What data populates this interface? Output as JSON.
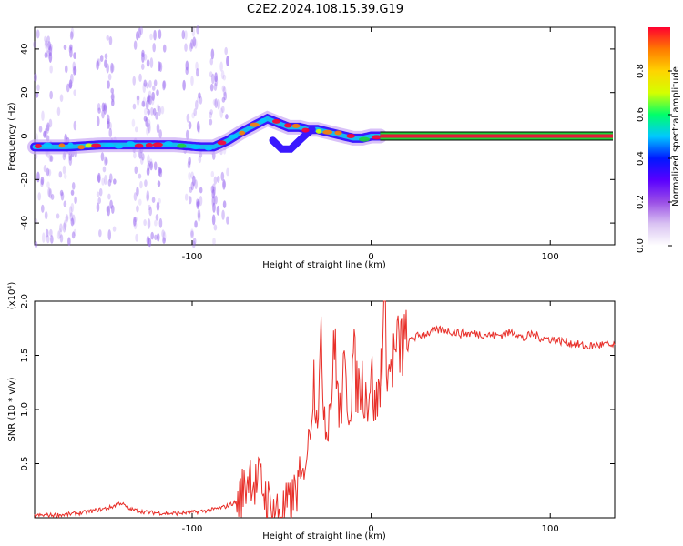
{
  "title": "C2E2.2024.108.15.39.G19",
  "colors": {
    "snr_line": "#e8302a",
    "track_band": "#1fd13a",
    "track_core": "#e31a3a",
    "scatter": "#9b6cf0",
    "axis": "#000000"
  },
  "chart_data": [
    {
      "type": "heatmap",
      "xlabel": "Height of straight line (km)",
      "ylabel": "Frequency (Hz)",
      "xlim": [
        -188,
        136
      ],
      "ylim": [
        -50,
        50
      ],
      "x_ticks": [
        "-100",
        "0",
        "100"
      ],
      "y_ticks": [
        "40",
        "20",
        "0",
        "-20",
        "-40"
      ],
      "x_tick_values": [
        -100,
        0,
        100
      ],
      "y_tick_values": [
        40,
        20,
        0,
        -20,
        -40
      ],
      "colorbar": {
        "label": "Normalized spectral amplitude",
        "range": [
          0,
          1
        ],
        "ticks": [
          "0.0",
          "0.2",
          "0.4",
          "0.6",
          "0.8"
        ],
        "tick_values": [
          0,
          0.2,
          0.4,
          0.6,
          0.8
        ],
        "colormap": [
          "#ffffff",
          "#d9c2f2",
          "#9a4ee6",
          "#5a00ff",
          "#0018ff",
          "#00c8ff",
          "#00ff6a",
          "#d4ff00",
          "#ffd400",
          "#ff7a00",
          "#ff0030"
        ]
      },
      "track": {
        "x": [
          -188,
          -170,
          -150,
          -130,
          -110,
          -95,
          -88,
          -80,
          -72,
          -65,
          -58,
          -52,
          -46,
          -40,
          -35,
          -30,
          -25,
          -20,
          -15,
          -10,
          -5,
          0,
          5,
          10,
          60,
          136
        ],
        "frequency": [
          -5,
          -5,
          -4,
          -4,
          -4,
          -5,
          -5,
          -2,
          2,
          5,
          8,
          6,
          4,
          4,
          3,
          3,
          2,
          1,
          0,
          -1,
          -1,
          0,
          0,
          0,
          0,
          0
        ],
        "stable_from_x": 5
      },
      "branch": {
        "x": [
          -55,
          -50,
          -45,
          -40,
          -36,
          -33
        ],
        "frequency": [
          -2,
          -6,
          -6,
          -2,
          1,
          3
        ]
      }
    },
    {
      "type": "line",
      "xlabel": "Height of straight line (km)",
      "ylabel": "SNR (10 * v/v)",
      "y_multiplier": "(x10⁴)",
      "xlim": [
        -188,
        136
      ],
      "ylim": [
        0,
        2.0
      ],
      "x_ticks": [
        "-100",
        "0",
        "100"
      ],
      "y_ticks": [
        "2.0",
        "1.5",
        "1.0",
        "0.5"
      ],
      "x_tick_values": [
        -100,
        0,
        100
      ],
      "y_tick_values": [
        2.0,
        1.5,
        1.0,
        0.5
      ],
      "series": [
        {
          "x": [
            -188,
            -170,
            -160,
            -150,
            -145,
            -140,
            -135,
            -125,
            -110,
            -100,
            -90,
            -82,
            -75,
            -70,
            -68,
            -65,
            -62,
            -58,
            -55,
            -50,
            -45,
            -42,
            -38,
            -35,
            -32,
            -30,
            -28,
            -25,
            -22,
            -20,
            -18,
            -15,
            -12,
            -10,
            -8,
            -5,
            -2,
            0,
            2,
            5,
            7,
            10,
            12,
            15,
            18,
            20,
            22,
            25,
            30,
            35,
            40,
            45,
            50,
            60,
            70,
            80,
            85,
            90,
            95,
            100,
            110,
            120,
            130,
            136
          ],
          "y": [
            0.02,
            0.03,
            0.05,
            0.08,
            0.1,
            0.14,
            0.08,
            0.05,
            0.04,
            0.05,
            0.07,
            0.1,
            0.15,
            0.3,
            0.45,
            0.3,
            0.35,
            0.15,
            0.08,
            0.05,
            0.12,
            0.25,
            0.4,
            0.7,
            1.3,
            1.0,
            1.5,
            0.8,
            1.2,
            1.65,
            0.9,
            1.3,
            1.0,
            1.5,
            1.2,
            1.25,
            1.1,
            1.35,
            1.0,
            1.2,
            2.0,
            1.3,
            1.45,
            1.55,
            1.62,
            1.55,
            1.65,
            1.67,
            1.7,
            1.72,
            1.74,
            1.72,
            1.7,
            1.7,
            1.68,
            1.72,
            1.65,
            1.7,
            1.66,
            1.65,
            1.62,
            1.58,
            1.6,
            1.58
          ]
        }
      ]
    }
  ]
}
